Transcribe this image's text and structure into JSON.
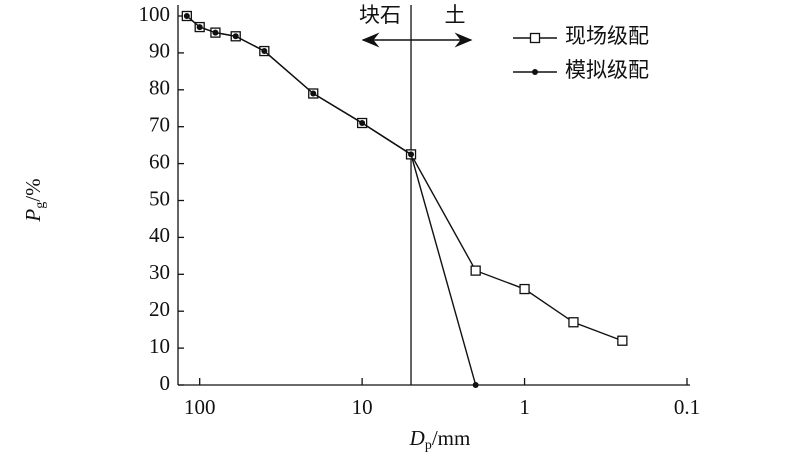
{
  "chart_data": {
    "type": "line",
    "x": [
      120,
      100,
      80,
      60,
      40,
      20,
      10,
      5,
      2,
      1,
      0.5,
      0.25
    ],
    "series": [
      {
        "name": "现场级配",
        "color": "#111111",
        "marker": "square",
        "values": [
          100,
          97,
          95.5,
          94.5,
          90.5,
          79,
          71,
          62.5,
          31,
          26,
          17,
          12
        ]
      },
      {
        "name": "模拟级配",
        "color": "#111111",
        "marker": "dot",
        "values": [
          100,
          97,
          95.5,
          94.5,
          90.5,
          79,
          71,
          62.5,
          0,
          null,
          null,
          null
        ]
      }
    ],
    "xlim": [
      136,
      0.1
    ],
    "xscale": "log",
    "xticks": [
      100,
      10,
      1,
      0.1
    ],
    "ylim": [
      0,
      100
    ],
    "yticks": [
      0,
      10,
      20,
      30,
      40,
      50,
      60,
      70,
      80,
      90,
      100
    ],
    "ylabel": {
      "symbol": "P",
      "sub": "g",
      "unit": "/%"
    },
    "xlabel": {
      "symbol": "D",
      "sub": "p",
      "unit": "/mm"
    },
    "divider": {
      "x": 5,
      "left_label": "块石",
      "right_label": "土"
    },
    "legend": "upper right"
  }
}
